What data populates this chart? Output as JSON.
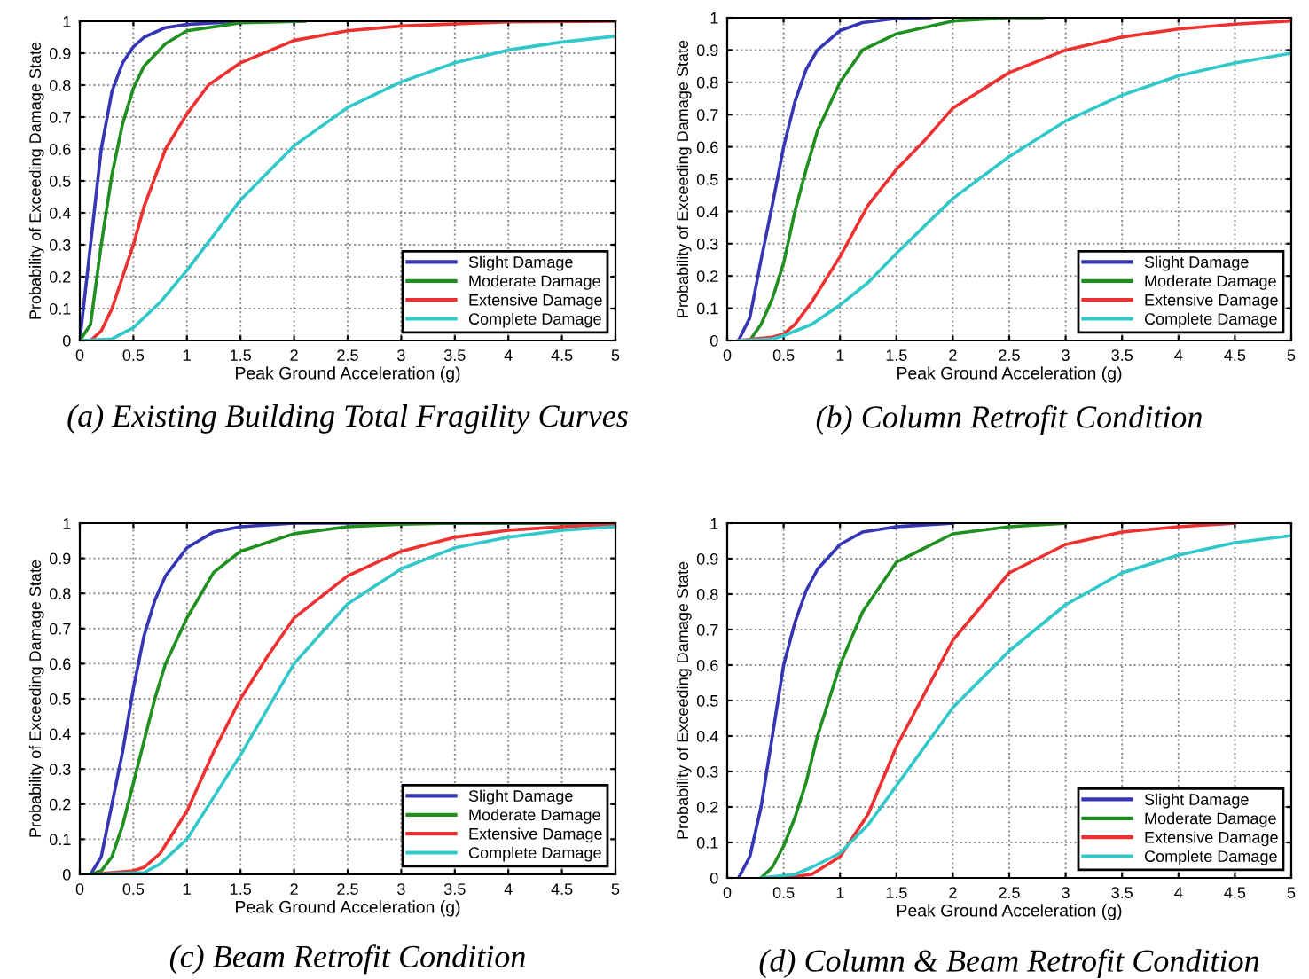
{
  "chart_data": [
    {
      "type": "line",
      "title": "(a) Existing Building Total Fragility Curves",
      "xlabel": "Peak Ground Acceleration (g)",
      "ylabel": "Probability of Exceeding Damage State",
      "xlim": [
        0,
        5
      ],
      "ylim": [
        0,
        1
      ],
      "xticks": [
        0,
        0.5,
        1,
        1.5,
        2,
        2.5,
        3,
        3.5,
        4,
        4.5,
        5
      ],
      "yticks": [
        0,
        0.1,
        0.2,
        0.3,
        0.4,
        0.5,
        0.6,
        0.7,
        0.8,
        0.9,
        1
      ],
      "grid": true,
      "legend": "bottom right",
      "series": [
        {
          "name": "Slight Damage",
          "color": "#3535b5",
          "x": [
            0,
            0.1,
            0.2,
            0.3,
            0.4,
            0.5,
            0.6,
            0.8,
            1,
            1.5
          ],
          "values": [
            0,
            0.3,
            0.6,
            0.78,
            0.87,
            0.92,
            0.95,
            0.98,
            0.99,
            1
          ]
        },
        {
          "name": "Moderate Damage",
          "color": "#1f8f1f",
          "x": [
            0,
            0.1,
            0.2,
            0.3,
            0.4,
            0.5,
            0.6,
            0.8,
            1,
            1.5,
            2.1
          ],
          "values": [
            0,
            0.05,
            0.3,
            0.52,
            0.68,
            0.79,
            0.86,
            0.93,
            0.97,
            0.995,
            1
          ]
        },
        {
          "name": "Extensive Damage",
          "color": "#ee3030",
          "x": [
            0.1,
            0.2,
            0.3,
            0.4,
            0.5,
            0.6,
            0.8,
            1,
            1.2,
            1.5,
            2,
            2.5,
            3,
            4,
            5
          ],
          "values": [
            0,
            0.03,
            0.1,
            0.2,
            0.3,
            0.42,
            0.6,
            0.71,
            0.8,
            0.87,
            0.94,
            0.97,
            0.985,
            0.998,
            1
          ]
        },
        {
          "name": "Complete Damage",
          "color": "#30c8c8",
          "x": [
            0,
            0.3,
            0.5,
            0.75,
            1,
            1.25,
            1.5,
            2,
            2.5,
            3,
            3.5,
            4,
            4.5,
            5
          ],
          "values": [
            0,
            0.005,
            0.04,
            0.12,
            0.22,
            0.33,
            0.44,
            0.61,
            0.73,
            0.81,
            0.87,
            0.91,
            0.935,
            0.953
          ]
        }
      ]
    },
    {
      "type": "line",
      "title": "(b) Column Retrofit Condition",
      "xlabel": "Peak Ground Acceleration (g)",
      "ylabel": "Probability of Exceeding Damage State",
      "xlim": [
        0,
        5
      ],
      "ylim": [
        0,
        1
      ],
      "xticks": [
        0,
        0.5,
        1,
        1.5,
        2,
        2.5,
        3,
        3.5,
        4,
        4.5,
        5
      ],
      "yticks": [
        0,
        0.1,
        0.2,
        0.3,
        0.4,
        0.5,
        0.6,
        0.7,
        0.8,
        0.9,
        1
      ],
      "grid": true,
      "legend": "bottom right",
      "series": [
        {
          "name": "Slight Damage",
          "color": "#3535b5",
          "x": [
            0.1,
            0.2,
            0.3,
            0.4,
            0.5,
            0.6,
            0.7,
            0.8,
            1,
            1.2,
            1.5,
            1.8
          ],
          "values": [
            0,
            0.07,
            0.25,
            0.42,
            0.6,
            0.74,
            0.84,
            0.9,
            0.96,
            0.985,
            0.998,
            1
          ]
        },
        {
          "name": "Moderate Damage",
          "color": "#1f8f1f",
          "x": [
            0.2,
            0.3,
            0.4,
            0.5,
            0.6,
            0.7,
            0.8,
            1,
            1.2,
            1.5,
            2,
            2.5,
            2.8
          ],
          "values": [
            0,
            0.05,
            0.13,
            0.24,
            0.4,
            0.53,
            0.65,
            0.8,
            0.9,
            0.95,
            0.99,
            1,
            1
          ]
        },
        {
          "name": "Extensive Damage",
          "color": "#ee3030",
          "x": [
            0.1,
            0.4,
            0.5,
            0.6,
            0.75,
            1,
            1.25,
            1.5,
            1.75,
            2,
            2.5,
            3,
            3.5,
            4,
            4.5,
            5
          ],
          "values": [
            0,
            0.01,
            0.02,
            0.05,
            0.12,
            0.26,
            0.42,
            0.53,
            0.62,
            0.72,
            0.83,
            0.9,
            0.94,
            0.965,
            0.98,
            0.99
          ]
        },
        {
          "name": "Complete Damage",
          "color": "#30c8c8",
          "x": [
            0.1,
            0.4,
            0.5,
            0.75,
            1,
            1.25,
            1.5,
            2,
            2.5,
            3,
            3.5,
            4,
            4.5,
            5
          ],
          "values": [
            0,
            0.005,
            0.015,
            0.05,
            0.11,
            0.18,
            0.27,
            0.44,
            0.57,
            0.68,
            0.76,
            0.82,
            0.86,
            0.89
          ]
        }
      ]
    },
    {
      "type": "line",
      "title": "(c) Beam Retrofit Condition",
      "xlabel": "Peak Ground Acceleration (g)",
      "ylabel": "Probability of Exceeding Damage State",
      "xlim": [
        0,
        5
      ],
      "ylim": [
        0,
        1
      ],
      "xticks": [
        0,
        0.5,
        1,
        1.5,
        2,
        2.5,
        3,
        3.5,
        4,
        4.5,
        5
      ],
      "yticks": [
        0,
        0.1,
        0.2,
        0.3,
        0.4,
        0.5,
        0.6,
        0.7,
        0.8,
        0.9,
        1
      ],
      "grid": true,
      "legend": "bottom right",
      "series": [
        {
          "name": "Slight Damage",
          "color": "#3535b5",
          "x": [
            0.1,
            0.2,
            0.3,
            0.4,
            0.5,
            0.6,
            0.7,
            0.8,
            1,
            1.25,
            1.5,
            2,
            5
          ],
          "values": [
            0,
            0.05,
            0.2,
            0.35,
            0.53,
            0.68,
            0.78,
            0.85,
            0.93,
            0.975,
            0.99,
            1,
            1
          ]
        },
        {
          "name": "Moderate Damage",
          "color": "#1f8f1f",
          "x": [
            0.1,
            0.2,
            0.3,
            0.4,
            0.5,
            0.6,
            0.7,
            0.8,
            1,
            1.25,
            1.5,
            2,
            2.5,
            3,
            3.5,
            5
          ],
          "values": [
            0,
            0.01,
            0.05,
            0.14,
            0.26,
            0.38,
            0.5,
            0.6,
            0.73,
            0.86,
            0.92,
            0.97,
            0.99,
            0.997,
            1,
            1
          ]
        },
        {
          "name": "Extensive Damage",
          "color": "#ee3030",
          "x": [
            0.1,
            0.5,
            0.6,
            0.75,
            1,
            1.25,
            1.5,
            1.75,
            2,
            2.5,
            3,
            3.5,
            4,
            4.5,
            5
          ],
          "values": [
            0,
            0.01,
            0.02,
            0.06,
            0.18,
            0.35,
            0.5,
            0.62,
            0.73,
            0.85,
            0.92,
            0.96,
            0.98,
            0.99,
            0.997
          ]
        },
        {
          "name": "Complete Damage",
          "color": "#30c8c8",
          "x": [
            0.1,
            0.6,
            0.75,
            1,
            1.25,
            1.5,
            1.75,
            2,
            2.5,
            3,
            3.5,
            4,
            4.5,
            5
          ],
          "values": [
            0,
            0.005,
            0.03,
            0.1,
            0.22,
            0.34,
            0.47,
            0.6,
            0.77,
            0.87,
            0.93,
            0.96,
            0.98,
            0.99
          ]
        }
      ]
    },
    {
      "type": "line",
      "title": "(d) Column & Beam Retrofit Condition",
      "xlabel": "Peak Ground Acceleration (g)",
      "ylabel": "Probability of Exceeding Damage State",
      "xlim": [
        0,
        5
      ],
      "ylim": [
        0,
        1
      ],
      "xticks": [
        0,
        0.5,
        1,
        1.5,
        2,
        2.5,
        3,
        3.5,
        4,
        4.5,
        5
      ],
      "yticks": [
        0,
        0.1,
        0.2,
        0.3,
        0.4,
        0.5,
        0.6,
        0.7,
        0.8,
        0.9,
        1
      ],
      "grid": true,
      "legend": "bottom right",
      "series": [
        {
          "name": "Slight Damage",
          "color": "#3535b5",
          "x": [
            0.1,
            0.2,
            0.3,
            0.4,
            0.5,
            0.6,
            0.7,
            0.8,
            1,
            1.2,
            1.5,
            2
          ],
          "values": [
            0,
            0.06,
            0.2,
            0.4,
            0.6,
            0.72,
            0.81,
            0.87,
            0.94,
            0.975,
            0.99,
            1
          ]
        },
        {
          "name": "Moderate Damage",
          "color": "#1f8f1f",
          "x": [
            0.3,
            0.4,
            0.5,
            0.6,
            0.7,
            0.8,
            1,
            1.2,
            1.5,
            2,
            2.5,
            3
          ],
          "values": [
            0,
            0.03,
            0.09,
            0.17,
            0.27,
            0.4,
            0.6,
            0.75,
            0.89,
            0.97,
            0.99,
            1
          ]
        },
        {
          "name": "Extensive Damage",
          "color": "#ee3030",
          "x": [
            0.5,
            0.75,
            1,
            1.25,
            1.5,
            1.75,
            2,
            2.5,
            3,
            3.5,
            4,
            4.5
          ],
          "values": [
            0,
            0.01,
            0.06,
            0.18,
            0.37,
            0.52,
            0.67,
            0.86,
            0.94,
            0.975,
            0.99,
            1
          ]
        },
        {
          "name": "Complete Damage",
          "color": "#30c8c8",
          "x": [
            0.3,
            0.6,
            0.75,
            1,
            1.25,
            1.5,
            2,
            2.5,
            3,
            3.5,
            4,
            4.5,
            5
          ],
          "values": [
            0,
            0.01,
            0.03,
            0.07,
            0.15,
            0.26,
            0.48,
            0.64,
            0.77,
            0.86,
            0.91,
            0.945,
            0.965
          ]
        }
      ]
    }
  ]
}
